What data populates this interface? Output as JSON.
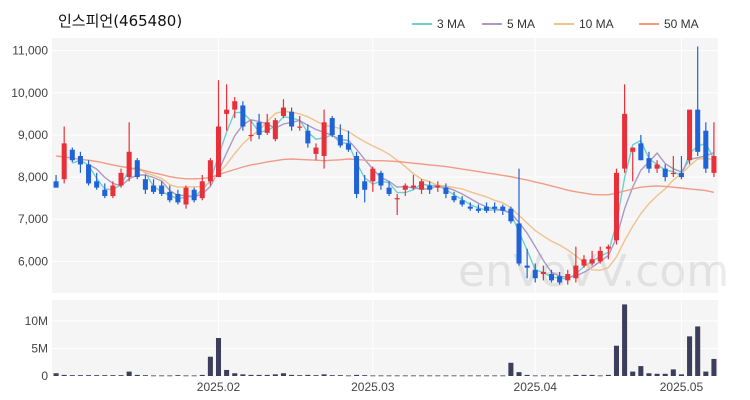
{
  "title": "인스피언(465480)",
  "watermark": "enVeVV.com",
  "colors": {
    "up": "#e8303a",
    "down": "#1f63d6",
    "volume": "#3d3d5c",
    "ma3": "#6fcfd1",
    "ma5": "#a99ac6",
    "ma10": "#f1c28c",
    "ma50": "#f39a84",
    "plot_bg": "#f5f5f5",
    "grid": "#ffffff"
  },
  "legend": [
    {
      "label": "3 MA",
      "color": "#6fcfd1"
    },
    {
      "label": "5 MA",
      "color": "#a99ac6"
    },
    {
      "label": "10 MA",
      "color": "#f1c28c"
    },
    {
      "label": "50 MA",
      "color": "#f39a84"
    }
  ],
  "chart_data": [
    {
      "type": "candlestick",
      "title": "인스피언(465480)",
      "ylim": [
        5250,
        11300
      ],
      "yticks": [
        6000,
        7000,
        8000,
        9000,
        10000,
        11000
      ],
      "ytick_labels": [
        "6,000",
        "7,000",
        "8,000",
        "9,000",
        "10,000",
        "11,000"
      ],
      "xticks": [
        {
          "index": 20,
          "label": "2025.02"
        },
        {
          "index": 39,
          "label": "2025.03"
        },
        {
          "index": 59,
          "label": "2025.04"
        },
        {
          "index": 77,
          "label": "2025.05"
        }
      ],
      "candles": [
        [
          7900,
          8050,
          7750,
          7750
        ],
        [
          7950,
          9200,
          7850,
          8800
        ],
        [
          8650,
          8700,
          8350,
          8400
        ],
        [
          8500,
          8600,
          8100,
          8300
        ],
        [
          8300,
          8400,
          7800,
          7850
        ],
        [
          7900,
          8100,
          7700,
          7750
        ],
        [
          7700,
          7850,
          7500,
          7550
        ],
        [
          7550,
          7900,
          7500,
          7800
        ],
        [
          7800,
          8200,
          7750,
          8100
        ],
        [
          8000,
          9300,
          7900,
          8600
        ],
        [
          8400,
          8450,
          7950,
          8000
        ],
        [
          7950,
          8050,
          7600,
          7700
        ],
        [
          7800,
          7950,
          7600,
          7650
        ],
        [
          7800,
          7900,
          7550,
          7600
        ],
        [
          7650,
          7800,
          7400,
          7450
        ],
        [
          7600,
          7700,
          7350,
          7400
        ],
        [
          7350,
          7800,
          7250,
          7750
        ],
        [
          7700,
          7750,
          7400,
          7450
        ],
        [
          7500,
          8050,
          7450,
          7900
        ],
        [
          7900,
          8450,
          7800,
          8400
        ],
        [
          8000,
          10300,
          8000,
          9200
        ],
        [
          9500,
          10200,
          9100,
          9600
        ],
        [
          9600,
          9900,
          9400,
          9800
        ],
        [
          9700,
          9800,
          9100,
          9200
        ],
        [
          9000,
          9350,
          8850,
          9000
        ],
        [
          9300,
          9500,
          8900,
          9000
        ],
        [
          9050,
          9500,
          9000,
          9300
        ],
        [
          8900,
          9400,
          8850,
          9350
        ],
        [
          9450,
          9850,
          9400,
          9650
        ],
        [
          9550,
          9650,
          9100,
          9200
        ],
        [
          9200,
          9450,
          9100,
          9200
        ],
        [
          9100,
          9250,
          8700,
          8800
        ],
        [
          8550,
          8800,
          8400,
          8700
        ],
        [
          8500,
          9600,
          8200,
          9300
        ],
        [
          9400,
          9450,
          8950,
          9000
        ],
        [
          9000,
          9250,
          8700,
          8750
        ],
        [
          8800,
          9100,
          8600,
          8650
        ],
        [
          8500,
          8600,
          7500,
          7600
        ],
        [
          7900,
          8050,
          7400,
          7700
        ],
        [
          7900,
          8250,
          7650,
          8200
        ],
        [
          8100,
          8150,
          7700,
          7800
        ],
        [
          7750,
          7900,
          7550,
          7600
        ],
        [
          7500,
          7600,
          7100,
          7500
        ],
        [
          7700,
          7850,
          7550,
          7800
        ],
        [
          7750,
          8050,
          7700,
          7800
        ],
        [
          7700,
          7950,
          7600,
          7900
        ],
        [
          7800,
          7900,
          7600,
          7700
        ],
        [
          7750,
          7900,
          7650,
          7800
        ],
        [
          7750,
          7850,
          7500,
          7600
        ],
        [
          7550,
          7650,
          7400,
          7450
        ],
        [
          7450,
          7550,
          7300,
          7350
        ],
        [
          7300,
          7400,
          7200,
          7250
        ],
        [
          7250,
          7350,
          7150,
          7200
        ],
        [
          7300,
          7400,
          7150,
          7200
        ],
        [
          7300,
          7400,
          7150,
          7250
        ],
        [
          7300,
          7350,
          7100,
          7200
        ],
        [
          7250,
          7300,
          6900,
          6950
        ],
        [
          6900,
          8200,
          5900,
          5950
        ],
        [
          5900,
          6300,
          5600,
          5850
        ],
        [
          5800,
          5950,
          5500,
          5600
        ],
        [
          5700,
          5900,
          5550,
          5750
        ],
        [
          5700,
          5800,
          5500,
          5550
        ],
        [
          5650,
          5750,
          5450,
          5500
        ],
        [
          5550,
          5800,
          5450,
          5700
        ],
        [
          5600,
          6350,
          5500,
          5900
        ],
        [
          5900,
          6150,
          5850,
          6050
        ],
        [
          5950,
          6250,
          5900,
          6050
        ],
        [
          6000,
          6350,
          5950,
          6250
        ],
        [
          6300,
          6400,
          6050,
          6350
        ],
        [
          6500,
          8200,
          6400,
          8100
        ],
        [
          8200,
          10200,
          8100,
          9500
        ],
        [
          8600,
          8700,
          7900,
          8700
        ],
        [
          8800,
          9000,
          8400,
          8400
        ],
        [
          8450,
          8600,
          8100,
          8200
        ],
        [
          8200,
          8400,
          8100,
          8300
        ],
        [
          8200,
          8300,
          7900,
          8000
        ],
        [
          8100,
          8500,
          8000,
          8100
        ],
        [
          8100,
          8500,
          7950,
          8000
        ],
        [
          8400,
          9600,
          8300,
          9600
        ],
        [
          9600,
          11100,
          8500,
          8600
        ],
        [
          9100,
          9300,
          8100,
          8200
        ],
        [
          8100,
          9300,
          8000,
          8500
        ]
      ],
      "series": [
        {
          "name": "3 MA",
          "values": [
            null,
            null,
            8333,
            8400,
            8283,
            7967,
            7717,
            7700,
            7817,
            8167,
            8233,
            8100,
            7783,
            7650,
            7567,
            7483,
            7533,
            7533,
            7700,
            7917,
            8500,
            9067,
            9533,
            9533,
            9333,
            9067,
            9100,
            9217,
            9433,
            9400,
            9350,
            9067,
            8900,
            8933,
            9000,
            8817,
            8800,
            8333,
            7983,
            7833,
            7900,
            7867,
            7633,
            7633,
            7700,
            7833,
            7800,
            7800,
            7700,
            7583,
            7467,
            7350,
            7267,
            7217,
            7217,
            7217,
            7133,
            6700,
            6267,
            5800,
            5733,
            5633,
            5600,
            5583,
            5700,
            5883,
            6000,
            6117,
            6217,
            6900,
            7983,
            8767,
            8867,
            8433,
            8300,
            8167,
            8133,
            8033,
            8567,
            8733,
            8800,
            8433
          ]
        },
        {
          "name": "5 MA",
          "values": [
            null,
            null,
            null,
            null,
            8300,
            8190,
            7990,
            7850,
            7790,
            7960,
            8050,
            8050,
            7990,
            7910,
            7680,
            7560,
            7570,
            7530,
            7600,
            7780,
            8150,
            8570,
            8980,
            9240,
            9360,
            9320,
            9260,
            9160,
            9260,
            9300,
            9340,
            9230,
            9130,
            9060,
            8990,
            8890,
            8870,
            8660,
            8420,
            8190,
            7990,
            7900,
            7760,
            7780,
            7740,
            7720,
            7720,
            7800,
            7760,
            7690,
            7600,
            7490,
            7380,
            7290,
            7240,
            7220,
            7150,
            6920,
            6670,
            6350,
            6020,
            5740,
            5650,
            5620,
            5650,
            5740,
            5860,
            6000,
            6140,
            6560,
            7250,
            7760,
            8160,
            8360,
            8570,
            8320,
            8200,
            8120,
            8420,
            8460,
            8500,
            8580
          ]
        },
        {
          "name": "10 MA",
          "values": [
            null,
            null,
            null,
            null,
            null,
            null,
            null,
            null,
            null,
            8180,
            8200,
            8110,
            8040,
            7970,
            7820,
            7760,
            7770,
            7770,
            7780,
            7870,
            8080,
            8300,
            8560,
            8790,
            8970,
            9110,
            9320,
            9510,
            9560,
            9540,
            9500,
            9430,
            9330,
            9230,
            9200,
            9150,
            9080,
            8950,
            8840,
            8740,
            8650,
            8540,
            8400,
            8250,
            8080,
            7950,
            7890,
            7800,
            7790,
            7750,
            7720,
            7650,
            7590,
            7530,
            7450,
            7390,
            7270,
            7090,
            6910,
            6730,
            6600,
            6480,
            6390,
            6270,
            6130,
            5980,
            5800,
            5790,
            5850,
            6110,
            6490,
            6830,
            7130,
            7370,
            7560,
            7720,
            7930,
            8080,
            8270,
            8430,
            8440,
            8420
          ]
        },
        {
          "name": "50 MA",
          "values": [
            8500,
            8480,
            8450,
            8420,
            8400,
            8370,
            8330,
            8290,
            8250,
            8220,
            8190,
            8150,
            8100,
            8060,
            8010,
            7980,
            7960,
            7960,
            7970,
            7990,
            8060,
            8120,
            8180,
            8240,
            8290,
            8320,
            8360,
            8390,
            8420,
            8430,
            8420,
            8410,
            8400,
            8390,
            8400,
            8410,
            8430,
            8420,
            8400,
            8390,
            8390,
            8380,
            8370,
            8350,
            8330,
            8310,
            8290,
            8270,
            8250,
            8220,
            8190,
            8160,
            8130,
            8100,
            8070,
            8040,
            8010,
            7970,
            7930,
            7880,
            7840,
            7790,
            7740,
            7690,
            7650,
            7620,
            7590,
            7580,
            7580,
            7620,
            7670,
            7720,
            7760,
            7780,
            7790,
            7780,
            7760,
            7740,
            7720,
            7700,
            7680,
            7640
          ]
        }
      ]
    },
    {
      "type": "bar",
      "title": "",
      "ylim": [
        0,
        13800000
      ],
      "yticks": [
        0,
        5000000,
        10000000
      ],
      "ytick_labels": [
        "0",
        "5M",
        "10M"
      ],
      "values": [
        500000,
        200000,
        150000,
        150000,
        150000,
        150000,
        150000,
        150000,
        150000,
        800000,
        200000,
        150000,
        100000,
        100000,
        100000,
        150000,
        100000,
        100000,
        200000,
        3500000,
        6900000,
        1100000,
        500000,
        300000,
        200000,
        200000,
        200000,
        300000,
        500000,
        200000,
        150000,
        200000,
        150000,
        300000,
        150000,
        150000,
        100000,
        200000,
        150000,
        100000,
        100000,
        100000,
        100000,
        100000,
        100000,
        100000,
        100000,
        100000,
        100000,
        100000,
        100000,
        100000,
        100000,
        100000,
        100000,
        100000,
        2400000,
        700000,
        200000,
        100000,
        100000,
        100000,
        100000,
        100000,
        200000,
        200000,
        200000,
        100000,
        200000,
        5500000,
        13000000,
        800000,
        1800000,
        500000,
        400000,
        400000,
        1200000,
        300000,
        7200000,
        9000000,
        800000,
        3100000
      ]
    }
  ]
}
